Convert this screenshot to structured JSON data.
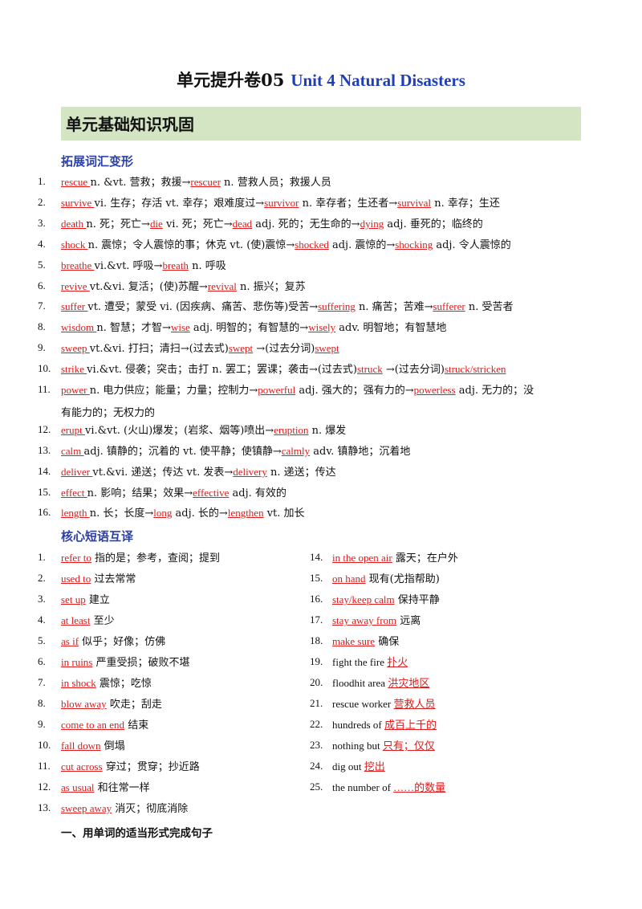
{
  "title": {
    "cn": "单元提升卷05",
    "en": "Unit 4 Natural Disasters"
  },
  "banner": "单元基础知识巩固",
  "vocab_heading": "拓展词汇变形",
  "vocab": [
    {
      "n": "1.",
      "w": "rescue",
      "t": "n. &vt. 营救；救援→",
      "a": "rescuer",
      "r": "n. 营救人员；救援人员"
    },
    {
      "n": "2.",
      "w": "survive",
      "t": "vi. 生存；存活   vt. 幸存；艰难度过→",
      "a": "survivor",
      "r": "n. 幸存者；生还者→",
      "a2": "survival",
      "r2": "n. 幸存；生还"
    },
    {
      "n": "3.",
      "w": "death",
      "t": "n. 死；死亡→",
      "a": "die",
      "r": "vi. 死；死亡→",
      "a2": "dead",
      "r2": "adj. 死的；无生命的→",
      "a3": "dying",
      "r3": "adj. 垂死的；临终的"
    },
    {
      "n": "4.",
      "w": "shock",
      "t": "n. 震惊；令人震惊的事；休克   vt. (使)震惊→",
      "a": "shocked",
      "r": "adj. 震惊的→",
      "a2": "shocking",
      "r2": "adj. 令人震惊的"
    },
    {
      "n": "5.",
      "w": "breathe",
      "t": "vi.&vt. 呼吸→",
      "a": "breath",
      "r": "n. 呼吸"
    },
    {
      "n": "6.",
      "w": "revive",
      "t": "vt.&vi. 复活；(使)苏醒→",
      "a": "revival",
      "r": "n. 振兴；复苏"
    },
    {
      "n": "7.",
      "w": "suffer",
      "t": "vt. 遭受；蒙受   vi. (因疾病、痛苦、悲伤等)受苦→",
      "a": "suffering",
      "r": "n. 痛苦；苦难→",
      "a2": "sufferer",
      "r2": "n. 受苦者"
    },
    {
      "n": "8.",
      "w": "wisdom",
      "t": "n. 智慧；才智→",
      "a": "wise",
      "r": "adj. 明智的；有智慧的→",
      "a2": "wisely",
      "r2": "adv. 明智地；有智慧地"
    },
    {
      "n": "9.",
      "w": "sweep",
      "t": "vt.&vi. 打扫；清扫→(过去式)",
      "a": "swept",
      "r": "→(过去分词)",
      "a2": "swept",
      "r2": ""
    },
    {
      "n": "10.",
      "w": "strike",
      "t": "vi.&vt. 侵袭；突击；击打   n. 罢工；罢课；袭击→(过去式)",
      "a": "struck",
      "r": "→(过去分词)",
      "a2": "struck/stricken",
      "r2": ""
    },
    {
      "n": "11.",
      "w": "power",
      "t": "n. 电力供应；能量；力量；控制力→",
      "a": "powerful",
      "r": "adj. 强大的；强有力的→",
      "a2": "powerless",
      "r2": "adj. 无力的；没",
      "cont": "有能力的；无权力的"
    },
    {
      "n": "12.",
      "w": "erupt",
      "t": "vi.&vt. (火山)爆发；(岩浆、烟等)喷出→",
      "a": "eruption",
      "r": "n. 爆发"
    },
    {
      "n": "13.",
      "w": "calm",
      "t": "adj. 镇静的；沉着的   vt. 使平静；使镇静→",
      "a": "calmly",
      "r": "adv. 镇静地；沉着地"
    },
    {
      "n": "14.",
      "w": "deliver",
      "t": "vt.&vi. 递送；传达   vt. 发表→",
      "a": "delivery",
      "r": "n. 递送；传达"
    },
    {
      "n": "15.",
      "w": "effect",
      "t": "n. 影响；结果；效果→",
      "a": "effective",
      "r": "adj. 有效的"
    },
    {
      "n": "16.",
      "w": "length",
      "t": "n. 长；长度→",
      "a": "long",
      "r": "adj. 长的→",
      "a2": "lengthen",
      "r2": "vt. 加长"
    }
  ],
  "phrase_heading": "核心短语互译",
  "phrases_left": [
    {
      "n": "1.",
      "a": "refer to",
      "m": "指的是；参考，查阅；提到"
    },
    {
      "n": "2.",
      "a": "used to",
      "m": "过去常常"
    },
    {
      "n": "3.",
      "a": "set up",
      "m": "建立"
    },
    {
      "n": "4.",
      "a": "at least",
      "m": "至少"
    },
    {
      "n": "5.",
      "a": "as if",
      "m": "似乎；好像；仿佛"
    },
    {
      "n": "6.",
      "a": "in ruins",
      "m": "严重受损；破败不堪"
    },
    {
      "n": "7.",
      "a": "in shock",
      "m": "震惊；吃惊"
    },
    {
      "n": "8.",
      "a": "blow away",
      "m": "吹走；刮走"
    },
    {
      "n": "9.",
      "a": "come to an end",
      "m": "结束"
    },
    {
      "n": "10.",
      "a": "fall down",
      "m": "倒塌"
    },
    {
      "n": "11.",
      "a": "cut across",
      "m": "穿过；贯穿；抄近路"
    },
    {
      "n": "12.",
      "a": "as usual",
      "m": "和往常一样"
    },
    {
      "n": "13.",
      "a": "sweep away",
      "m": "消灭；彻底消除"
    }
  ],
  "phrases_right": [
    {
      "n": "14.",
      "p": "",
      "a": "in the open air",
      "m": "露天；在户外"
    },
    {
      "n": "15.",
      "p": "",
      "a": "on hand",
      "m": "现有(尤指帮助)"
    },
    {
      "n": "16.",
      "p": "",
      "a": "stay/keep calm",
      "m": "保持平静"
    },
    {
      "n": "17.",
      "p": "",
      "a": "stay away from",
      "m": "远离"
    },
    {
      "n": "18.",
      "p": "",
      "a": "make sure",
      "m": "确保"
    },
    {
      "n": "19.",
      "p": "fight the fire",
      "a": "扑火",
      "m": ""
    },
    {
      "n": "20.",
      "p": "floodhit area",
      "a": "洪灾地区",
      "m": ""
    },
    {
      "n": "21.",
      "p": "rescue worker",
      "a": "营救人员",
      "m": ""
    },
    {
      "n": "22.",
      "p": "hundreds of",
      "a": "成百上千的",
      "m": ""
    },
    {
      "n": "23.",
      "p": "nothing but",
      "a": "只有；仅仅",
      "m": ""
    },
    {
      "n": "24.",
      "p": "dig out",
      "a": "挖出",
      "m": ""
    },
    {
      "n": "25.",
      "p": "the number of",
      "a": "……的数量",
      "m": ""
    }
  ],
  "section_one": "一、用单词的适当形式完成句子"
}
